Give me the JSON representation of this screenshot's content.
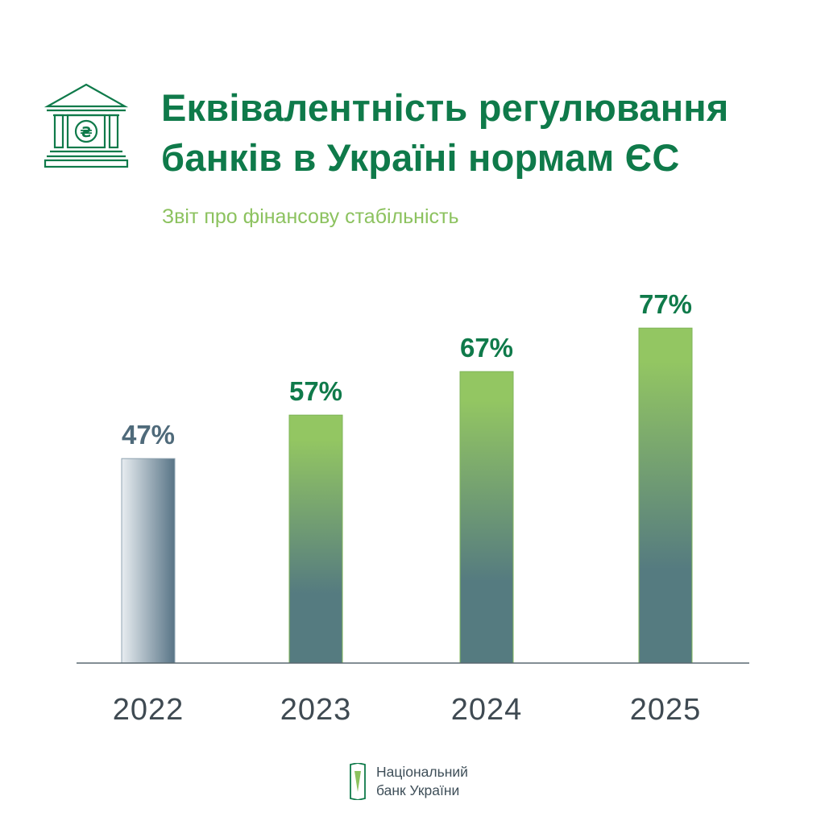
{
  "header": {
    "title_line1": "Еквівалентність регулювання",
    "title_line2": "банків в Україні нормам ЄС",
    "subtitle": "Звіт про фінансову стабільність"
  },
  "icon": {
    "name": "bank-building-hryvnia-icon",
    "symbol": "₴"
  },
  "colors": {
    "title": "#0f7a4a",
    "subtitle": "#8cc25f",
    "label_first": "#4f6a7a",
    "label_others": "#0f7a4a",
    "bar_top": "#93c662",
    "bar_bottom": "#557b80",
    "bar_first_light": "#e8edf1",
    "bar_first_dark": "#587486",
    "axis": "#5a6870",
    "tick": "#3f4a52"
  },
  "chart_data": {
    "type": "bar",
    "categories": [
      "2022",
      "2023",
      "2024",
      "2025"
    ],
    "values": [
      47,
      57,
      67,
      77
    ],
    "value_labels": [
      "47%",
      "57%",
      "67%",
      "77%"
    ],
    "ylim": [
      0,
      100
    ]
  },
  "footer": {
    "logo_line1": "Національний",
    "logo_line2": "банк України"
  }
}
